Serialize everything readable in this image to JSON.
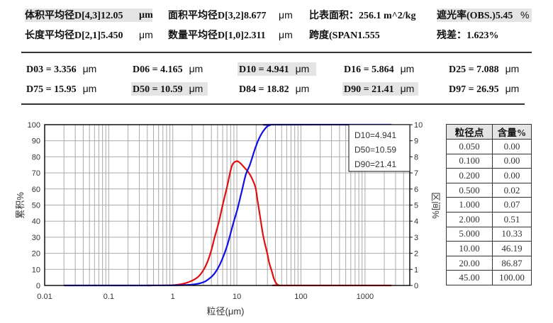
{
  "summary": {
    "row1": [
      {
        "label": "体积平均径D[4,3]",
        "value": "12.05",
        "unit": "µm",
        "highlight": true
      },
      {
        "label": "面积平均径D[3,2]",
        "value": "8.677",
        "unit": "μm"
      },
      {
        "label": "比表面积：",
        "value": "256.1  m^2/kg"
      },
      {
        "label": "遮光率(OBS.)",
        "value": "5.45",
        "unit": "%",
        "highlight": true
      }
    ],
    "row2": [
      {
        "label": "长度平均径D[2,1]",
        "value": "5.450",
        "unit": "μm"
      },
      {
        "label": "数量平均径D[1,0]",
        "value": "2.311",
        "unit": "μm"
      },
      {
        "label": "跨度(SPAN",
        "value": "1.555"
      },
      {
        "label": "残差：",
        "value": "1.623%"
      }
    ]
  },
  "percentiles": [
    {
      "text": "D03 = 3.356",
      "unit": "μm"
    },
    {
      "text": "D06 = 4.165",
      "unit": "μm"
    },
    {
      "text": "D10 = 4.941",
      "unit": "μm",
      "highlight": true
    },
    {
      "text": "D16 = 5.864",
      "unit": "μm"
    },
    {
      "text": "D25 = 7.088",
      "unit": "μm"
    },
    {
      "text": "D75 = 15.95",
      "unit": "μm"
    },
    {
      "text": "D50 = 10.59",
      "unit": "μm",
      "highlight": true
    },
    {
      "text": "D84 = 18.82",
      "unit": "μm"
    },
    {
      "text": "D90 = 21.41",
      "unit": "μm",
      "highlight": true
    },
    {
      "text": "D97 = 26.95",
      "unit": "μm"
    }
  ],
  "table": {
    "headers": [
      "粒径点",
      "含量%"
    ],
    "rows": [
      [
        "0.050",
        "0.00"
      ],
      [
        "0.100",
        "0.00"
      ],
      [
        "0.200",
        "0.00"
      ],
      [
        "0.500",
        "0.02"
      ],
      [
        "1.000",
        "0.07"
      ],
      [
        "2.000",
        "0.51"
      ],
      [
        "5.000",
        "10.33"
      ],
      [
        "10.00",
        "46.19"
      ],
      [
        "20.00",
        "86.87"
      ],
      [
        "45.00",
        "100.00"
      ]
    ]
  },
  "chart_data": {
    "type": "line",
    "title": "",
    "xlabel": "粒径(μm)",
    "ylabel": "累积%",
    "y2label": "区间%",
    "x_scale": "log",
    "x_range": [
      0.01,
      5000
    ],
    "x_ticks": [
      "0.01",
      "0.1",
      "1",
      "10",
      "100",
      "1000"
    ],
    "ylim": [
      0,
      100
    ],
    "y_ticks": [
      0,
      10,
      20,
      30,
      40,
      50,
      60,
      70,
      80,
      90,
      100
    ],
    "y2lim": [
      0,
      10
    ],
    "y2_ticks": [
      0,
      1,
      2,
      3,
      4,
      5,
      6,
      7,
      8,
      9,
      10
    ],
    "grid": true,
    "legend_box": [
      "D10=4.941",
      "D50=10.59",
      "D90=21.41"
    ],
    "legend_position": "upper right",
    "series": [
      {
        "name": "区间%",
        "axis": "right",
        "color": "#e01010",
        "x": [
          0.4,
          1,
          1.5,
          2,
          2.5,
          3,
          3.5,
          4,
          4.5,
          5.2,
          6,
          7,
          8.3,
          9.7,
          11,
          13,
          15.1,
          17,
          19.5,
          21,
          23,
          26,
          29.8,
          32,
          35.2,
          38,
          41.7,
          45,
          50,
          2600
        ],
        "values": [
          0,
          0.02,
          0.12,
          0.3,
          0.55,
          0.95,
          1.5,
          2.2,
          3.0,
          3.9,
          5.0,
          6.1,
          7.4,
          7.72,
          7.65,
          7.35,
          7.05,
          6.7,
          6.1,
          5.3,
          4.3,
          3.0,
          2.0,
          1.4,
          0.87,
          0.4,
          0.1,
          0.02,
          0,
          0
        ]
      },
      {
        "name": "累积%",
        "axis": "left",
        "color": "#1010e0",
        "x": [
          0.02,
          0.3,
          0.5,
          1,
          1.5,
          2,
          2.5,
          3,
          3.356,
          4.165,
          4.941,
          5.864,
          7.088,
          8.7,
          10,
          10.59,
          12,
          13.8,
          15.95,
          18.82,
          20,
          21.41,
          24,
          26.95,
          30,
          33,
          37,
          2600
        ],
        "values": [
          0,
          0,
          0.02,
          0.07,
          0.25,
          0.51,
          1.1,
          2.0,
          3,
          6,
          10,
          16,
          25,
          38,
          46.19,
          50,
          59,
          69,
          75,
          84,
          86.87,
          90,
          94,
          97,
          99,
          99.7,
          100,
          100
        ]
      }
    ]
  }
}
